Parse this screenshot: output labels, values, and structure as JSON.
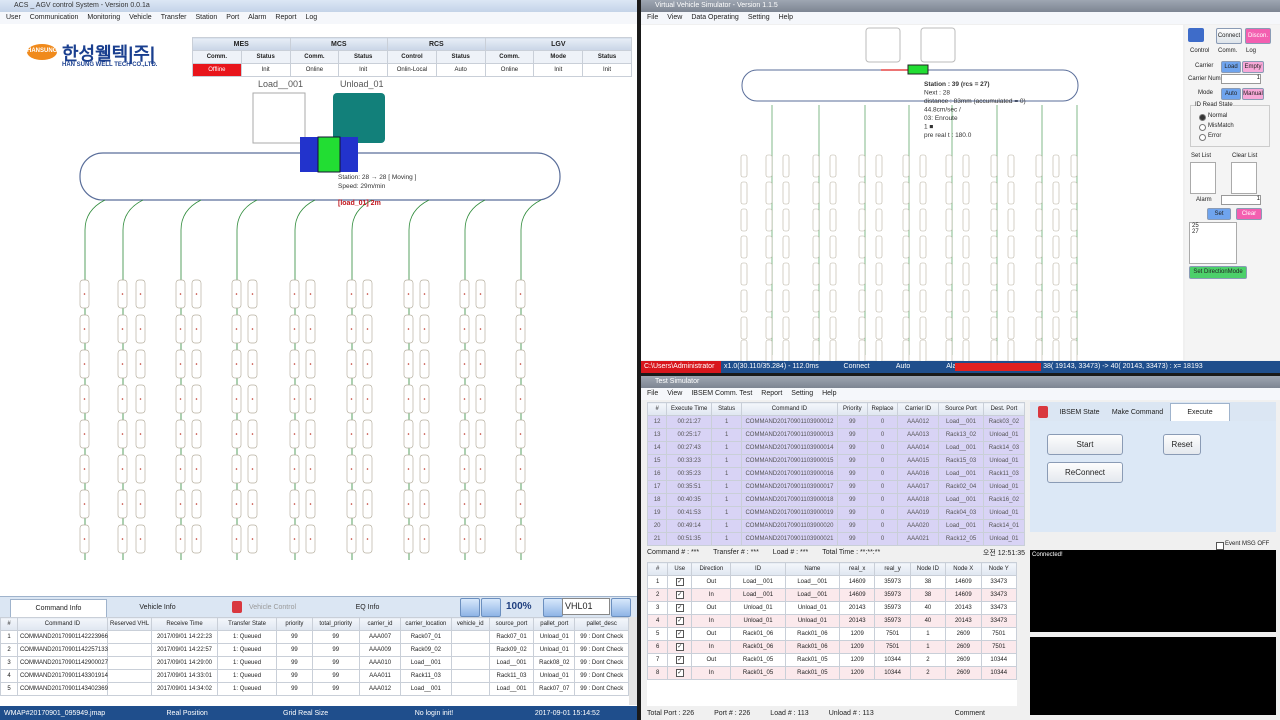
{
  "acs": {
    "title": "ACS _ AGV control System - Version 0.0.1a",
    "menu": [
      "User",
      "Communication",
      "Monitoring",
      "Vehicle",
      "Transfer",
      "Station",
      "Port",
      "Alarm",
      "Report",
      "Log"
    ],
    "logo": {
      "brand": "HANSUNG",
      "korean": "한성웰텍|주|",
      "english": "HAN SUNG WELL TECH CO.,LTD."
    },
    "status": [
      {
        "group": "MES",
        "headers": [
          "Comm.",
          "Status"
        ],
        "values": [
          "Offline",
          "Init"
        ]
      },
      {
        "group": "MCS",
        "headers": [
          "Comm.",
          "Status"
        ],
        "values": [
          "Online",
          "Init"
        ]
      },
      {
        "group": "RCS",
        "headers": [
          "Control",
          "Status"
        ],
        "values": [
          "Onlin-Local",
          "Auto"
        ]
      },
      {
        "group": "LGV",
        "headers": [
          "Comm.",
          "Mode",
          "Status"
        ],
        "values": [
          "Online",
          "Init",
          "Init"
        ]
      }
    ],
    "map": {
      "load": "Load__001",
      "unload": "Unload_01",
      "vehicle_info": [
        "Station: 28 → 28 [ Moving ]",
        "Speed:  29m/min"
      ],
      "target": "[load_01]     2m"
    },
    "tabs": [
      "Command Info",
      "Vehicle Info",
      "Vehicle Control",
      "EQ Info"
    ],
    "zoom": "100%",
    "vehicle": "VHL01",
    "table": {
      "headers": [
        "#",
        "Command ID",
        "Reserved VHL",
        "Receive Time",
        "Transfer State",
        "priority",
        "total_priority",
        "carrier_id",
        "carrier_location",
        "vehicle_id",
        "source_port",
        "pallet_port",
        "pallet_desc"
      ],
      "rows": [
        [
          "1",
          "COMMAND20170901142223966",
          null,
          "2017/09/01 14:22:23",
          "1: Queued",
          "99",
          "99",
          "AAA007",
          "Rack07_01",
          null,
          "Rack07_01",
          "Unload_01",
          "99 : Dont Check"
        ],
        [
          "2",
          "COMMAND20170901142257133",
          null,
          "2017/09/01 14:22:57",
          "1: Queued",
          "99",
          "99",
          "AAA009",
          "Rack09_02",
          null,
          "Rack09_02",
          "Unload_01",
          "99 : Dont Check"
        ],
        [
          "3",
          "COMMAND20170901142900027",
          null,
          "2017/09/01 14:29:00",
          "1: Queued",
          "99",
          "99",
          "AAA010",
          "Load__001",
          null,
          "Load__001",
          "Rack08_02",
          "99 : Dont Check"
        ],
        [
          "4",
          "COMMAND20170901143301914",
          null,
          "2017/09/01 14:33:01",
          "1: Queued",
          "99",
          "99",
          "AAA011",
          "Rack11_03",
          null,
          "Rack11_03",
          "Unload_01",
          "99 : Dont Check"
        ],
        [
          "5",
          "COMMAND20170901143402369",
          null,
          "2017/09/01 14:34:02",
          "1: Queued",
          "99",
          "99",
          "AAA012",
          "Load__001",
          null,
          "Load__001",
          "Rack07_07",
          "99 : Dont Check"
        ]
      ]
    },
    "statusbar": [
      "WMAP#20170901_095949.jmap",
      "Real Position",
      "Grid Real Size",
      "No login init!",
      "2017-09-01 15:14:52"
    ]
  },
  "vvs": {
    "title": "Virtual Vehicle Simulator - Version 1.1.5",
    "menu": [
      "File",
      "View",
      "Data Operating",
      "Setting",
      "Help"
    ],
    "vehicle_info": [
      "Station :   39 (rcs =   27)",
      "Next :  28",
      "distance : 83mm (accumulated =   0)",
      "44.8cm/sec /",
      "03: Enroute",
      "1 ■",
      "pre real t : 180.0"
    ],
    "panel": {
      "connect": "Connect",
      "disconnect": "Discon.",
      "tabs": [
        "Control",
        "Comm.",
        "Log"
      ],
      "carrier": "Carrier",
      "load": "Load",
      "empty": "Empty",
      "carrier_num": "Carrier Num",
      "carrier_num_value": "1",
      "mode": "Mode",
      "auto": "Auto",
      "manual": "Manual",
      "id_read_state": "ID Read State",
      "radios": [
        "Normal",
        "MisMatch",
        "Error"
      ],
      "set_list": "Set List",
      "clear_list": "Clear List",
      "alarm": "Alarm",
      "alarm_value": "1",
      "set": "Set",
      "clear": "Clear",
      "list": [
        "25",
        "27"
      ],
      "direction": "Set DirectionMode"
    },
    "statusbar": [
      "C:\\Users\\Administrator",
      "x1.0(30.110/35.284) - 112.0ms",
      "Connect",
      "Auto",
      "Alarm",
      "38( 19143,  33473) -> 40( 20143,  33473) : x= 18193"
    ]
  },
  "test": {
    "title": "Test Simulator",
    "menu": [
      "File",
      "View",
      "IBSEM Comm. Test",
      "Report",
      "Setting",
      "Help"
    ],
    "commands": {
      "headers": [
        "#",
        "Execute Time",
        "Status",
        "Command ID",
        "Priority",
        "Replace",
        "Carrier ID",
        "Source Port",
        "Dest. Port"
      ],
      "rows": [
        [
          "12",
          "00:21:27",
          "1",
          "COMMAND20170901103900012",
          "99",
          "0",
          "AAA012",
          "Load__001",
          "Rack03_02"
        ],
        [
          "13",
          "00:25:17",
          "1",
          "COMMAND20170901103900013",
          "99",
          "0",
          "AAA013",
          "Rack13_02",
          "Unload_01"
        ],
        [
          "14",
          "00:27:43",
          "1",
          "COMMAND20170901103900014",
          "99",
          "0",
          "AAA014",
          "Load__001",
          "Rack14_03"
        ],
        [
          "15",
          "00:33:23",
          "1",
          "COMMAND20170901103900015",
          "99",
          "0",
          "AAA015",
          "Rack15_03",
          "Unload_01"
        ],
        [
          "16",
          "00:35:23",
          "1",
          "COMMAND20170901103900016",
          "99",
          "0",
          "AAA016",
          "Load__001",
          "Rack11_03"
        ],
        [
          "17",
          "00:35:51",
          "1",
          "COMMAND20170901103900017",
          "99",
          "0",
          "AAA017",
          "Rack02_04",
          "Unload_01"
        ],
        [
          "18",
          "00:40:35",
          "1",
          "COMMAND20170901103900018",
          "99",
          "0",
          "AAA018",
          "Load__001",
          "Rack16_02"
        ],
        [
          "19",
          "00:41:53",
          "1",
          "COMMAND20170901103900019",
          "99",
          "0",
          "AAA019",
          "Rack04_03",
          "Unload_01"
        ],
        [
          "20",
          "00:49:14",
          "1",
          "COMMAND20170901103900020",
          "99",
          "0",
          "AAA020",
          "Load__001",
          "Rack14_01"
        ],
        [
          "21",
          "00:51:35",
          "1",
          "COMMAND20170901103900021",
          "99",
          "0",
          "AAA021",
          "Rack12_05",
          "Unload_01"
        ]
      ]
    },
    "summary": [
      "Command # : ***",
      "Transfer # : ***",
      "Load # : ***",
      "Total Time : **:**:**",
      "오전 12:51:35"
    ],
    "ports": {
      "headers": [
        "#",
        "Use",
        "Direction",
        "ID",
        "Name",
        "real_x",
        "real_y",
        "Node ID",
        "Node X",
        "Node Y"
      ],
      "rows": [
        [
          "1",
          null,
          "Out",
          "Load__001",
          "Load__001",
          "14609",
          "35973",
          "38",
          "14609",
          "33473"
        ],
        [
          "2",
          null,
          "In",
          "Load__001",
          "Load__001",
          "14609",
          "35973",
          "38",
          "14609",
          "33473"
        ],
        [
          "3",
          null,
          "Out",
          "Unload_01",
          "Unload_01",
          "20143",
          "35973",
          "40",
          "20143",
          "33473"
        ],
        [
          "4",
          null,
          "In",
          "Unload_01",
          "Unload_01",
          "20143",
          "35973",
          "40",
          "20143",
          "33473"
        ],
        [
          "5",
          null,
          "Out",
          "Rack01_06",
          "Rack01_06",
          "1209",
          "7501",
          "1",
          "2609",
          "7501"
        ],
        [
          "6",
          null,
          "In",
          "Rack01_06",
          "Rack01_06",
          "1209",
          "7501",
          "1",
          "2609",
          "7501"
        ],
        [
          "7",
          null,
          "Out",
          "Rack01_05",
          "Rack01_05",
          "1209",
          "10344",
          "2",
          "2609",
          "10344"
        ],
        [
          "8",
          null,
          "In",
          "Rack01_05",
          "Rack01_05",
          "1209",
          "10344",
          "2",
          "2609",
          "10344"
        ]
      ]
    },
    "footer": [
      "Total Port : 226",
      "Port # : 226",
      "Load # : 113",
      "Unload # : 113",
      "Comment"
    ],
    "panel": {
      "tabs": [
        "IBSEM State",
        "Make Command",
        "Execute"
      ],
      "start": "Start",
      "reset": "Reset",
      "reconnect": "ReConnect",
      "event": "Event MSG OFF",
      "log": "Connected!"
    }
  }
}
